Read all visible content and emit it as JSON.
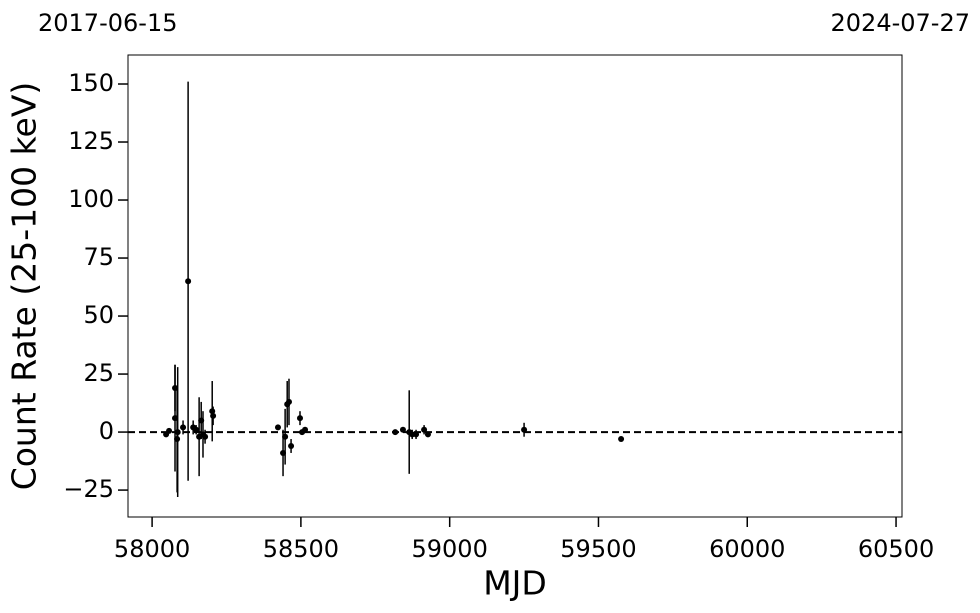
{
  "chart_data": {
    "type": "errorbar_scatter",
    "top_left_label": "2017-06-15",
    "top_right_label": "2024-07-27",
    "x_label": "MJD",
    "y_label": "Count Rate (25-100 keV)",
    "color": "#000000",
    "reference_line": 0,
    "xlim": [
      57919,
      60520
    ],
    "ylim": [
      -36.6,
      162.5
    ],
    "xticks": [
      58000,
      58500,
      59000,
      59500,
      60000,
      60500
    ],
    "yticks": [
      {
        "value": -25,
        "label": "−25"
      },
      0,
      25,
      50,
      75,
      100,
      125,
      150
    ],
    "x": [
      58047,
      58057,
      58077,
      58077,
      58084,
      58086,
      58104,
      58121,
      58138,
      58148,
      58158,
      58165,
      58171,
      58178,
      58202,
      58205,
      58423,
      58440,
      58447,
      58454,
      58460,
      58467,
      58497,
      58504,
      58514,
      58817,
      58843,
      58864,
      58874,
      58887,
      58914,
      58927,
      59250,
      59576
    ],
    "values": [
      -1,
      0.5,
      6,
      19,
      -3,
      0,
      2,
      65,
      2,
      1,
      -2,
      5,
      -1,
      -2,
      9,
      7,
      2,
      -9,
      -2,
      12,
      13,
      -6,
      6,
      0,
      1,
      0,
      1,
      0,
      -1,
      -1,
      1,
      -1,
      1,
      -3
    ],
    "errors": [
      1,
      1,
      23,
      10,
      23,
      28,
      3,
      86,
      3,
      2,
      17,
      8,
      10,
      3,
      13,
      4,
      1,
      10,
      12,
      10,
      10,
      3,
      3,
      1,
      1,
      1,
      1,
      18,
      2,
      2,
      2,
      1,
      3,
      1
    ]
  }
}
